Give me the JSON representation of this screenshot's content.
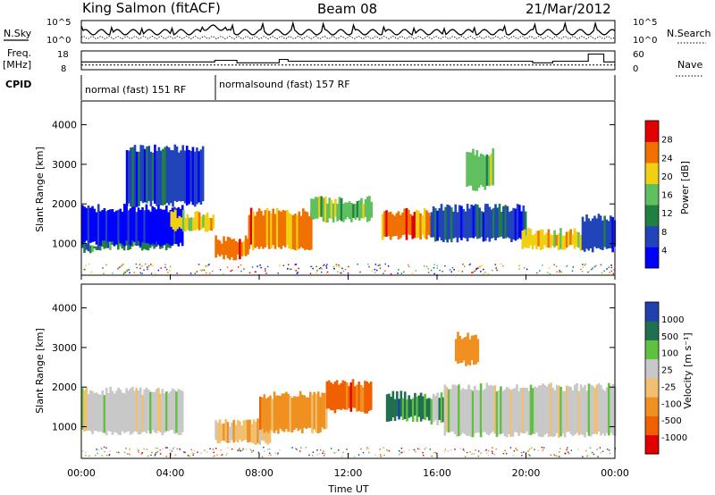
{
  "header": {
    "station": "King Salmon (fitACF)",
    "beam": "Beam 08",
    "date": "21/Mar/2012"
  },
  "side_labels": {
    "nsky": "N.Sky",
    "freq_line1": "Freq.",
    "freq_line2": "[MHz]",
    "cpid": "CPID",
    "nsearch": "N.Search",
    "nave": "Nave"
  },
  "cpid_segments": [
    {
      "label": "normal (fast) 151 RF",
      "start_hour": 0,
      "end_hour": 6
    },
    {
      "label": "normalsound (fast) 157 RF",
      "start_hour": 6,
      "end_hour": 24
    }
  ],
  "chart_data": [
    {
      "type": "line",
      "name": "noise-panel",
      "left_ticks": [
        "10^5",
        "10^0"
      ],
      "right_ticks": [
        "10^5",
        "10^0"
      ],
      "x_range_hours": [
        0,
        24
      ]
    },
    {
      "type": "line",
      "name": "frequency-panel",
      "left_ticks": [
        "18",
        "8"
      ],
      "right_ticks": [
        "60",
        "0"
      ],
      "freq_range_mhz": [
        8,
        18
      ],
      "nave_range": [
        0,
        60
      ],
      "freq_mhz": 10.5,
      "nave_steps": [
        {
          "start": 0,
          "end": 6,
          "value": 25
        },
        {
          "start": 6,
          "end": 7,
          "value": 30
        },
        {
          "start": 7,
          "end": 8.9,
          "value": 22
        },
        {
          "start": 8.9,
          "end": 9.3,
          "value": 33
        },
        {
          "start": 9.3,
          "end": 20.3,
          "value": 27
        },
        {
          "start": 20.3,
          "end": 21.2,
          "value": 22
        },
        {
          "start": 21.2,
          "end": 22.8,
          "value": 27
        },
        {
          "start": 22.8,
          "end": 23.5,
          "value": 50
        },
        {
          "start": 23.5,
          "end": 24,
          "value": 25
        }
      ]
    },
    {
      "type": "heatmap",
      "name": "power-panel",
      "ylabel": "Slant Range [km]",
      "ylim": [
        200,
        4600
      ],
      "yticks": [
        1000,
        2000,
        3000,
        4000
      ],
      "xlim": [
        0,
        24
      ],
      "colorbar_label": "Power [dB]",
      "colorbar_ticks": [
        "28",
        "24",
        "20",
        "16",
        "12",
        "8",
        "4"
      ],
      "colors": [
        "#0000ff",
        "#2244bb",
        "#208040",
        "#60c060",
        "#f0d010",
        "#f07000",
        "#e00000"
      ],
      "regions": [
        {
          "t0": 0.0,
          "t1": 0.8,
          "r0": 820,
          "r1": 1000,
          "level": 2
        },
        {
          "t0": 0.8,
          "t1": 4.0,
          "r0": 900,
          "r1": 1150,
          "level": 2
        },
        {
          "t0": 0.0,
          "t1": 4.5,
          "r0": 1000,
          "r1": 1900,
          "level": 0
        },
        {
          "t0": 4.0,
          "t1": 5.9,
          "r0": 1350,
          "r1": 1750,
          "level": 4
        },
        {
          "t0": 6.0,
          "t1": 7.5,
          "r0": 650,
          "r1": 1100,
          "level": 5
        },
        {
          "t0": 7.5,
          "t1": 10.3,
          "r0": 900,
          "r1": 1800,
          "level": 5
        },
        {
          "t0": 10.3,
          "t1": 13.0,
          "r0": 1600,
          "r1": 2100,
          "level": 3
        },
        {
          "t0": 13.5,
          "t1": 15.7,
          "r0": 1150,
          "r1": 1800,
          "level": 5
        },
        {
          "t0": 15.7,
          "t1": 20.0,
          "r0": 1100,
          "r1": 1900,
          "level": 1
        },
        {
          "t0": 19.8,
          "t1": 22.5,
          "r0": 900,
          "r1": 1300,
          "level": 4
        },
        {
          "t0": 22.5,
          "t1": 24.0,
          "r0": 850,
          "r1": 1650,
          "level": 1
        },
        {
          "t0": 17.3,
          "t1": 18.5,
          "r0": 2400,
          "r1": 3300,
          "level": 3
        },
        {
          "t0": 2.0,
          "t1": 5.5,
          "r0": 2000,
          "r1": 3400,
          "level": 1
        }
      ]
    },
    {
      "type": "heatmap",
      "name": "velocity-panel",
      "ylabel": "Slant Range [km]",
      "xlabel": "Time UT",
      "ylim": [
        200,
        4600
      ],
      "yticks": [
        1000,
        2000,
        3000,
        4000
      ],
      "xlim": [
        0,
        24
      ],
      "xticks": [
        "00:00",
        "04:00",
        "08:00",
        "12:00",
        "16:00",
        "20:00",
        "00:00"
      ],
      "colorbar_label": "Velocity [m s⁻¹]",
      "colorbar_ticks": [
        "1000",
        "500",
        "100",
        "25",
        "-25",
        "-100",
        "-500",
        "-1000"
      ],
      "colors": [
        "#e00000",
        "#f06000",
        "#f09020",
        "#f0c070",
        "#c8c8c8",
        "#60c040",
        "#207050",
        "#2040b0"
      ],
      "regions": [
        {
          "t0": 0.0,
          "t1": 4.5,
          "r0": 850,
          "r1": 1900,
          "level": 4
        },
        {
          "t0": 6.0,
          "t1": 8.5,
          "r0": 600,
          "r1": 1100,
          "level": 3
        },
        {
          "t0": 8.0,
          "t1": 11.0,
          "r0": 900,
          "r1": 1800,
          "level": 2
        },
        {
          "t0": 11.0,
          "t1": 13.0,
          "r0": 1400,
          "r1": 2100,
          "level": 1
        },
        {
          "t0": 13.7,
          "t1": 15.7,
          "r0": 1200,
          "r1": 1800,
          "level": 6
        },
        {
          "t0": 15.7,
          "t1": 16.3,
          "r0": 1100,
          "r1": 1800,
          "level": 5
        },
        {
          "t0": 16.3,
          "t1": 24.0,
          "r0": 800,
          "r1": 2000,
          "level": 4
        },
        {
          "t0": 16.8,
          "t1": 17.8,
          "r0": 2600,
          "r1": 3300,
          "level": 2
        }
      ]
    }
  ]
}
